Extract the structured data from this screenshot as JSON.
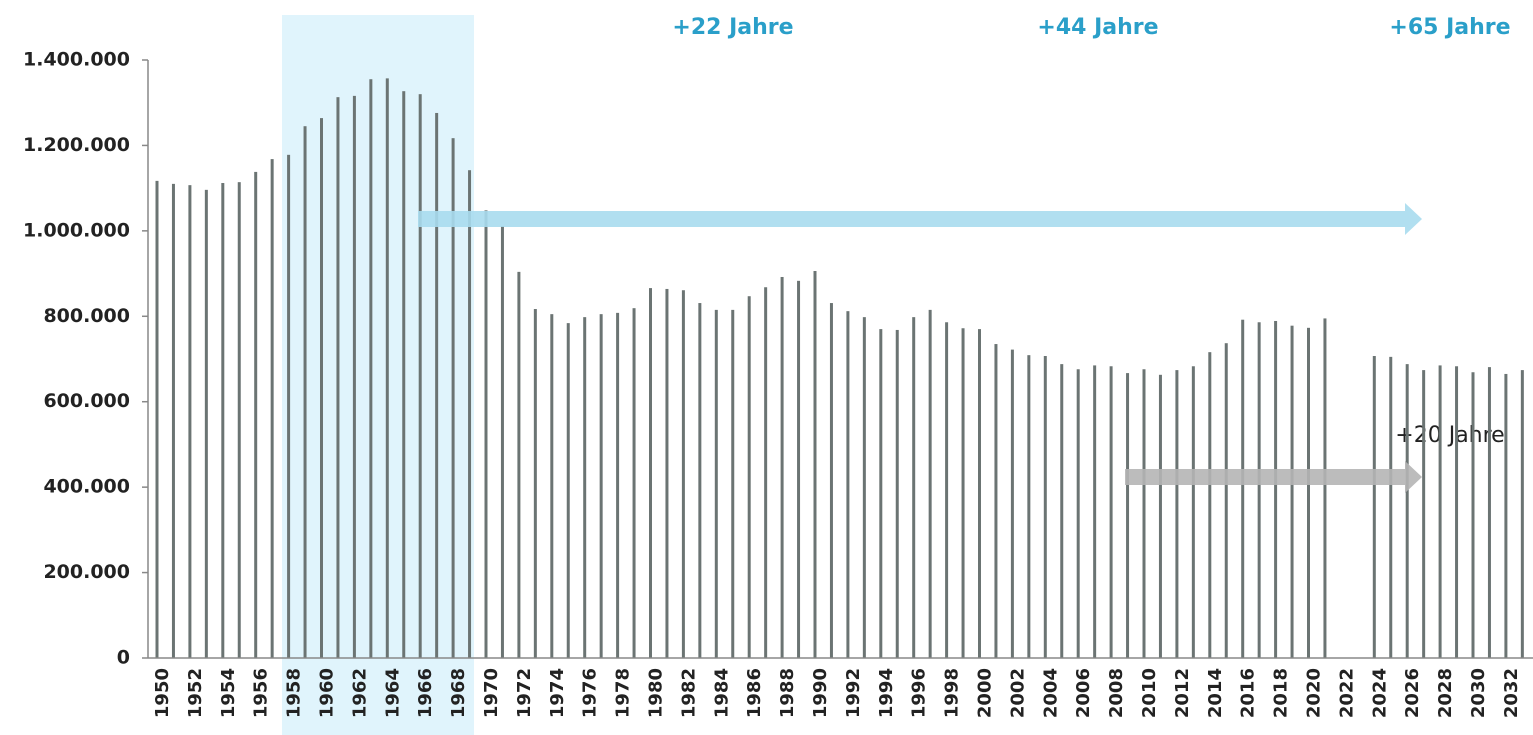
{
  "chart_data": {
    "type": "bar",
    "categories": [
      "1950",
      null,
      "1952",
      null,
      "1954",
      null,
      "1956",
      null,
      "1958",
      null,
      "1960",
      null,
      "1962",
      null,
      "1964",
      null,
      "1966",
      null,
      "1968",
      null,
      "1970",
      null,
      "1972",
      null,
      "1974",
      null,
      "1976",
      null,
      "1978",
      null,
      "1980",
      null,
      "1982",
      null,
      "1984",
      null,
      "1986",
      null,
      "1988",
      null,
      "1990",
      null,
      "1992",
      null,
      "1994",
      null,
      "1996",
      null,
      "1998",
      null,
      "2000",
      null,
      "2002",
      null,
      "2004",
      null,
      "2006",
      null,
      "2008",
      null,
      "2010",
      null,
      "2012",
      null,
      "2014",
      null,
      "2016",
      null,
      "2018",
      null,
      "2020",
      null,
      "2022",
      null,
      "2024",
      null,
      "2026",
      null,
      "2028",
      null,
      "2030",
      null,
      "2032",
      null
    ],
    "values": [
      1117000,
      1110000,
      1107000,
      1096000,
      1112000,
      1114000,
      1138000,
      1168000,
      1178000,
      1245000,
      1264000,
      1313000,
      1316000,
      1355000,
      1357000,
      1327000,
      1320000,
      1276000,
      1217000,
      1142000,
      1048000,
      1011000,
      904000,
      817000,
      805000,
      784000,
      798000,
      805000,
      808000,
      819000,
      866000,
      864000,
      861000,
      831000,
      815000,
      815000,
      847000,
      868000,
      892000,
      883000,
      906000,
      831000,
      812000,
      798000,
      770000,
      768000,
      798000,
      815000,
      786000,
      772000,
      770000,
      735000,
      722000,
      709000,
      707000,
      688000,
      676000,
      685000,
      683000,
      667000,
      676000,
      663000,
      674000,
      683000,
      716000,
      737000,
      792000,
      786000,
      789000,
      778000,
      773000,
      795000,
      null,
      null,
      707000,
      705000,
      688000,
      674000,
      685000,
      683000,
      669000,
      681000,
      665000,
      674000
    ],
    "color": "#6b7473",
    "ylim": [
      0,
      1400000
    ],
    "yticks": [
      0,
      {
        "value": 200000,
        "label": "200.000"
      },
      {
        "value": 400000,
        "label": "400.000"
      },
      {
        "value": 600000,
        "label": "600.000"
      },
      {
        "value": 800000,
        "label": "800.000"
      },
      {
        "value": 1000000,
        "label": "1.000.000"
      },
      {
        "value": 1200000,
        "label": "1.200.000"
      },
      {
        "value": 1400000,
        "label": "1.400.000"
      }
    ],
    "grid": false,
    "annotations": [
      "+22 Jahre",
      "+44 Jahre",
      "+65 Jahre",
      "+20 Jahre"
    ]
  }
}
